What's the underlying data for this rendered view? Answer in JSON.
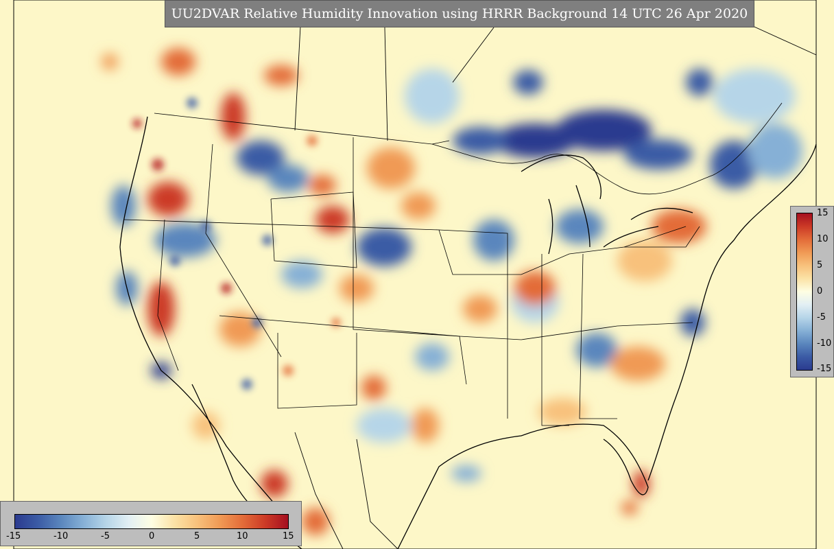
{
  "title": "UU2DVAR Relative Humidity Innovation using HRRR Background 14 UTC 26 Apr 2020",
  "colorbar_horizontal": {
    "ticks": [
      "-15",
      "-10",
      "-5",
      "0",
      "5",
      "10",
      "15"
    ]
  },
  "colorbar_vertical": {
    "ticks": [
      "15",
      "10",
      "5",
      "0",
      "-5",
      "-10",
      "-15"
    ]
  },
  "colors": {
    "background": "#fdf7c8",
    "neg_strong": "#2b3b8f",
    "neg_mid": "#6fa0cf",
    "neg_weak": "#cbe3ef",
    "pos_weak": "#fbd99a",
    "pos_mid": "#f08a4b",
    "pos_strong": "#b4161e",
    "panel": "#bdbdbd",
    "title_bg": "#7f7f7f"
  },
  "colorscale": [
    "#2b3b8f",
    "#3b5ba5",
    "#5a86bd",
    "#86b0d6",
    "#b6d5e8",
    "#e2eff4",
    "#fefee3",
    "#fbe2a6",
    "#f8c17c",
    "#f09a55",
    "#e36c39",
    "#cc3a26",
    "#a50f20"
  ]
}
